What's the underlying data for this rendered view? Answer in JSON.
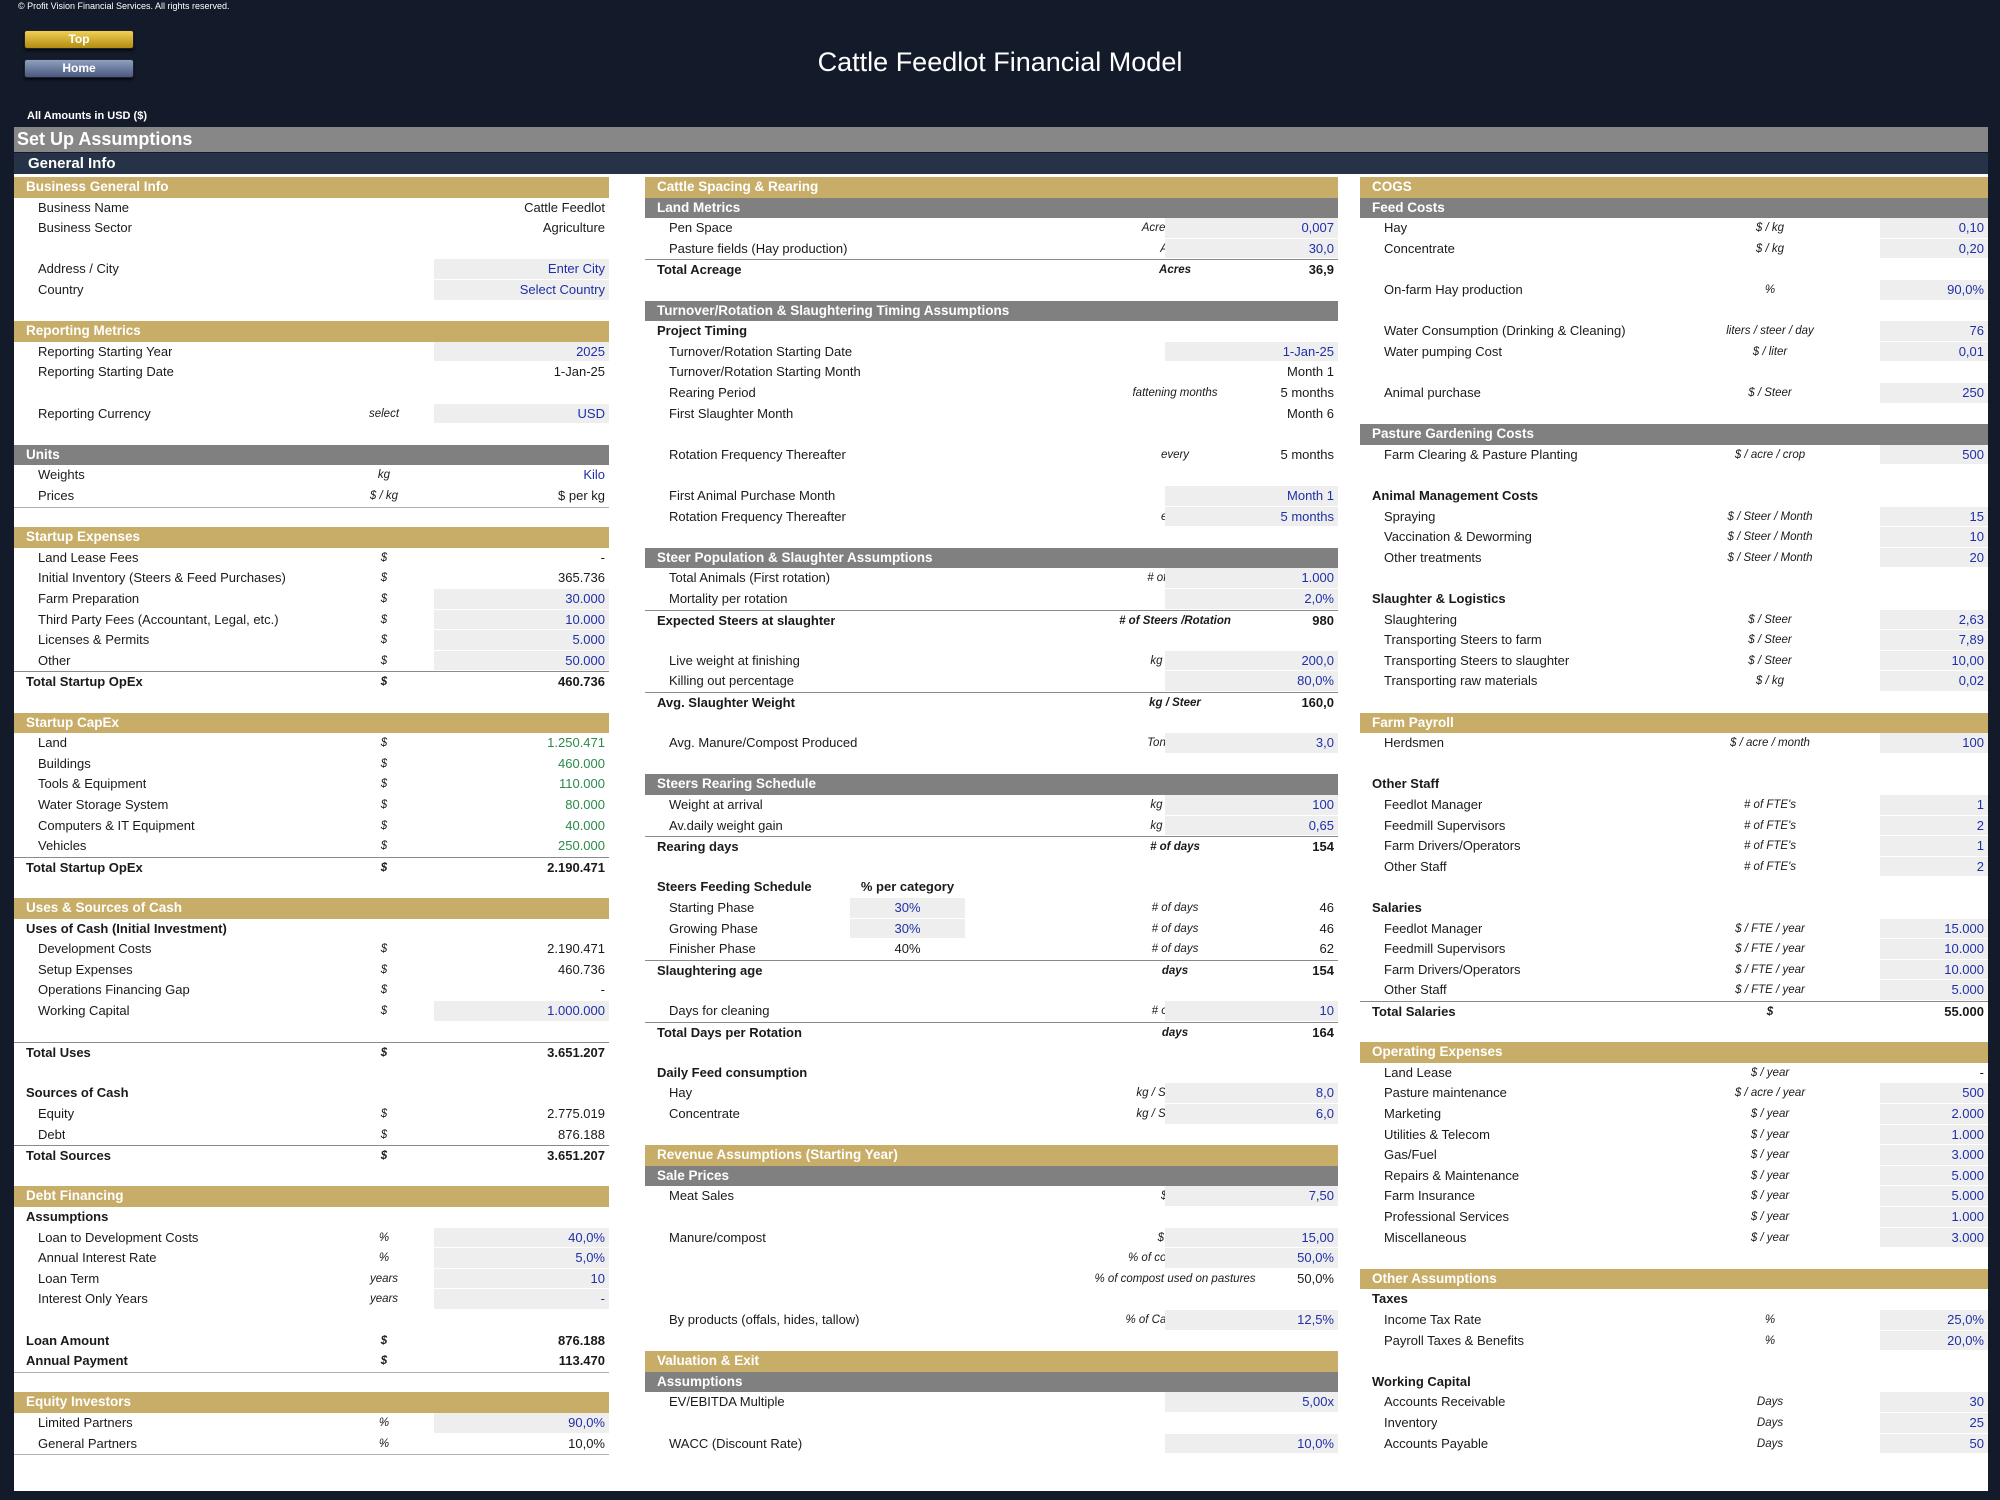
{
  "header": {
    "copyright": "© Profit Vision Financial Services. All rights reserved.",
    "top_label": "Top",
    "home_label": "Home",
    "title": "Cattle Feedlot Financial Model",
    "amounts": "All Amounts in  USD ($)",
    "section_title": "Set Up Assumptions",
    "sub_title": "General Info"
  },
  "colors": {
    "navy": "#131a29",
    "gold": "#c8ad68",
    "gray": "#808080",
    "input_fill": "#eeeeee",
    "input_text": "#1f2fa8",
    "capex_text": "#2b8a4a"
  },
  "columns": [
    [
      {
        "r": 0,
        "t": "hg",
        "l": "Business General Info"
      },
      {
        "r": 1,
        "l": "Business Name",
        "v": "Cattle Feedlot"
      },
      {
        "r": 2,
        "l": "Business Sector",
        "v": "Agriculture"
      },
      {
        "r": 4,
        "l": "Address / City",
        "v": "Enter City",
        "s": "in"
      },
      {
        "r": 5,
        "l": "Country",
        "v": "Select Country",
        "s": "in"
      },
      {
        "r": 7,
        "t": "hg",
        "l": "Reporting Metrics"
      },
      {
        "r": 8,
        "l": "Reporting Starting Year",
        "v": "2025",
        "s": "in"
      },
      {
        "r": 9,
        "l": "Reporting Starting Date",
        "v": "1-Jan-25"
      },
      {
        "r": 11,
        "l": "Reporting Currency",
        "u": "select",
        "v": "USD",
        "s": "in"
      },
      {
        "r": 13,
        "t": "hy",
        "l": "Units"
      },
      {
        "r": 14,
        "l": "Weights",
        "u": "kg",
        "v": "Kilo",
        "s": "b"
      },
      {
        "r": 15,
        "l": "Prices",
        "u": "$ / kg",
        "v": "$  per kg",
        "line": "bot"
      },
      {
        "r": 17,
        "t": "hg",
        "l": "Startup Expenses"
      },
      {
        "r": 18,
        "l": "Land Lease Fees",
        "u": "$",
        "v": "-"
      },
      {
        "r": 19,
        "l": "Initial Inventory (Steers & Feed Purchases)",
        "u": "$",
        "v": "365.736"
      },
      {
        "r": 20,
        "l": "Farm Preparation",
        "u": "$",
        "v": "30.000",
        "s": "in"
      },
      {
        "r": 21,
        "l": "Third Party Fees (Accountant, Legal, etc.)",
        "u": "$",
        "v": "10.000",
        "s": "in"
      },
      {
        "r": 22,
        "l": "Licenses & Permits",
        "u": "$",
        "v": "5.000",
        "s": "in"
      },
      {
        "r": 23,
        "l": "Other",
        "u": "$",
        "v": "50.000",
        "s": "in"
      },
      {
        "r": 24,
        "t": "tot",
        "l": "Total Startup OpEx",
        "u": "$",
        "v": "460.736"
      },
      {
        "r": 26,
        "t": "hg",
        "l": "Startup CapEx"
      },
      {
        "r": 27,
        "l": "Land",
        "u": "$",
        "v": "1.250.471",
        "s": "g"
      },
      {
        "r": 28,
        "l": "Buildings",
        "u": "$",
        "v": "460.000",
        "s": "g"
      },
      {
        "r": 29,
        "l": "Tools & Equipment",
        "u": "$",
        "v": "110.000",
        "s": "g"
      },
      {
        "r": 30,
        "l": "Water Storage System",
        "u": "$",
        "v": "80.000",
        "s": "g"
      },
      {
        "r": 31,
        "l": "Computers & IT Equipment",
        "u": "$",
        "v": "40.000",
        "s": "g"
      },
      {
        "r": 32,
        "l": "Vehicles",
        "u": "$",
        "v": "250.000",
        "s": "g"
      },
      {
        "r": 33,
        "t": "tot",
        "l": "Total Startup OpEx",
        "u": "$",
        "v": "2.190.471"
      },
      {
        "r": 35,
        "t": "hg",
        "l": "Uses & Sources of Cash"
      },
      {
        "r": 36,
        "t": "sub",
        "l": "Uses of Cash (Initial Investment)"
      },
      {
        "r": 37,
        "l": "Development Costs",
        "u": "$",
        "v": "2.190.471"
      },
      {
        "r": 38,
        "l": "Setup Expenses",
        "u": "$",
        "v": "460.736"
      },
      {
        "r": 39,
        "l": "Operations Financing Gap",
        "u": "$",
        "v": "-"
      },
      {
        "r": 40,
        "l": "Working Capital",
        "u": "$",
        "v": "1.000.000",
        "s": "in"
      },
      {
        "r": 42,
        "t": "tot",
        "l": "Total Uses",
        "u": "$",
        "v": "3.651.207"
      },
      {
        "r": 44,
        "t": "sub",
        "l": "Sources of Cash"
      },
      {
        "r": 45,
        "l": "Equity",
        "u": "$",
        "v": "2.775.019"
      },
      {
        "r": 46,
        "l": "Debt",
        "u": "$",
        "v": "876.188"
      },
      {
        "r": 47,
        "t": "tot",
        "l": "Total Sources",
        "u": "$",
        "v": "3.651.207"
      },
      {
        "r": 49,
        "t": "hg",
        "l": "Debt Financing"
      },
      {
        "r": 50,
        "t": "sub",
        "l": "Assumptions"
      },
      {
        "r": 51,
        "l": "Loan to Development Costs",
        "u": "%",
        "v": "40,0%",
        "s": "in"
      },
      {
        "r": 52,
        "l": "Annual Interest Rate",
        "u": "%",
        "v": "5,0%",
        "s": "in"
      },
      {
        "r": 53,
        "l": "Loan Term",
        "u": "years",
        "v": "10",
        "s": "in"
      },
      {
        "r": 54,
        "l": "Interest Only Years",
        "u": "years",
        "v": "-",
        "s": "in"
      },
      {
        "r": 56,
        "t": "sub",
        "l": "Loan Amount",
        "u": "$",
        "v": "876.188"
      },
      {
        "r": 57,
        "t": "sub",
        "l": "Annual Payment",
        "u": "$",
        "v": "113.470",
        "line": "bot"
      },
      {
        "r": 59,
        "t": "hg",
        "l": "Equity Investors"
      },
      {
        "r": 60,
        "l": "Limited Partners",
        "u": "%",
        "v": "90,0%",
        "s": "in"
      },
      {
        "r": 61,
        "l": "General Partners",
        "u": "%",
        "v": "10,0%",
        "line": "bot"
      }
    ],
    [
      {
        "r": 0,
        "t": "hg",
        "l": "Cattle Spacing & Rearing"
      },
      {
        "r": 1,
        "t": "hy",
        "l": "Land Metrics"
      },
      {
        "r": 2,
        "l": "Pen Space",
        "u": "Acres / Steer",
        "v": "0,007",
        "s": "in"
      },
      {
        "r": 3,
        "l": "Pasture fields (Hay production)",
        "u": "Acres",
        "v": "30,0",
        "s": "in"
      },
      {
        "r": 4,
        "t": "tot",
        "l": "Total Acreage",
        "u": "Acres",
        "v": "36,9"
      },
      {
        "r": 6,
        "t": "hy",
        "l": "Turnover/Rotation & Slaughtering Timing Assumptions"
      },
      {
        "r": 7,
        "t": "sub",
        "l": "Project Timing"
      },
      {
        "r": 8,
        "l": "Turnover/Rotation Starting Date",
        "v": "1-Jan-25",
        "s": "in"
      },
      {
        "r": 9,
        "l": "Turnover/Rotation Starting Month",
        "v": "Month 1"
      },
      {
        "r": 10,
        "l": "Rearing Period",
        "u": "fattening months",
        "v": "5 months"
      },
      {
        "r": 11,
        "l": "First Slaughter Month",
        "v": "Month 6"
      },
      {
        "r": 13,
        "l": "Rotation Frequency Thereafter",
        "u": "every",
        "v": "5 months"
      },
      {
        "r": 15,
        "l": "First Animal Purchase Month",
        "v": "Month 1",
        "s": "in"
      },
      {
        "r": 16,
        "l": "Rotation Frequency Thereafter",
        "u": "every",
        "v": "5 months",
        "s": "in"
      },
      {
        "r": 18,
        "t": "hy",
        "l": "Steer Population & Slaughter Assumptions"
      },
      {
        "r": 19,
        "l": "Total Animals (First rotation)",
        "u": "# of Steers",
        "v": "1.000",
        "s": "in"
      },
      {
        "r": 20,
        "l": "Mortality per rotation",
        "u": "%",
        "v": "2,0%",
        "s": "in"
      },
      {
        "r": 21,
        "t": "tot",
        "l": "Expected Steers at slaughter",
        "u": "# of Steers /Rotation",
        "v": "980"
      },
      {
        "r": 23,
        "l": "Live weight at finishing",
        "u": "kg / Steer",
        "v": "200,0",
        "s": "in"
      },
      {
        "r": 24,
        "l": "Killing out percentage",
        "u": "%",
        "v": "80,0%",
        "s": "in"
      },
      {
        "r": 25,
        "t": "tot",
        "l": "Avg. Slaughter Weight",
        "u": "kg / Steer",
        "v": "160,0"
      },
      {
        "r": 27,
        "l": "Avg. Manure/Compost Produced",
        "u": "Ton / Steer",
        "v": "3,0",
        "s": "in"
      },
      {
        "r": 29,
        "t": "hy",
        "l": "Steers Rearing Schedule"
      },
      {
        "r": 30,
        "l": "Weight at arrival",
        "u": "kg / Steer",
        "v": "100",
        "s": "in"
      },
      {
        "r": 31,
        "l": "Av.daily weight gain",
        "u": "kg / Steer",
        "v": "0,65",
        "s": "in"
      },
      {
        "r": 32,
        "t": "tot",
        "l": "Rearing days",
        "u": "# of days",
        "v": "154"
      },
      {
        "r": 34,
        "t": "sub",
        "l": "Steers Feeding Schedule",
        "m": "% per category"
      },
      {
        "r": 35,
        "l": "Starting Phase",
        "m": "30%",
        "ms": "in",
        "u": "# of days",
        "v": "46"
      },
      {
        "r": 36,
        "l": "Growing Phase",
        "m": "30%",
        "ms": "in",
        "u": "# of days",
        "v": "46"
      },
      {
        "r": 37,
        "l": "Finisher Phase",
        "m": "40%",
        "u": "# of days",
        "v": "62"
      },
      {
        "r": 38,
        "t": "tot",
        "l": "Slaughtering age",
        "u": "days",
        "v": "154"
      },
      {
        "r": 40,
        "l": "Days for cleaning",
        "u": "# of days",
        "v": "10",
        "s": "in"
      },
      {
        "r": 41,
        "t": "tot",
        "l": "Total Days per Rotation",
        "u": "days",
        "v": "164"
      },
      {
        "r": 43,
        "t": "sub",
        "l": "Daily Feed consumption"
      },
      {
        "r": 44,
        "l": "Hay",
        "u": "kg / Steer / day",
        "v": "8,0",
        "s": "in"
      },
      {
        "r": 45,
        "l": "Concentrate",
        "u": "kg / Steer / day",
        "v": "6,0",
        "s": "in"
      },
      {
        "r": 47,
        "t": "hg",
        "l": "Revenue Assumptions (Starting Year)"
      },
      {
        "r": 48,
        "t": "hy",
        "l": "Sale Prices"
      },
      {
        "r": 49,
        "l": "Meat Sales",
        "u": "$ / kg",
        "v": "7,50",
        "s": "in"
      },
      {
        "r": 51,
        "l": "Manure/compost",
        "u": "$ / Ton",
        "v": "15,00",
        "s": "in"
      },
      {
        "r": 52,
        "u": "% of compost sold",
        "v": "50,0%",
        "s": "in"
      },
      {
        "r": 53,
        "u": "% of compost used on pastures",
        "v": "50,0%"
      },
      {
        "r": 55,
        "l": "By products (offals, hides, tallow)",
        "u": "% of  Carcass value",
        "v": "12,5%",
        "s": "in"
      },
      {
        "r": 57,
        "t": "hg",
        "l": "Valuation & Exit"
      },
      {
        "r": 58,
        "t": "hy",
        "l": "Assumptions"
      },
      {
        "r": 59,
        "l": "EV/EBITDA Multiple",
        "u": "x",
        "v": "5,00x",
        "s": "in"
      },
      {
        "r": 61,
        "l": "WACC (Discount Rate)",
        "u": "%",
        "v": "10,0%",
        "s": "in"
      }
    ],
    [
      {
        "r": 0,
        "t": "hg",
        "l": "COGS"
      },
      {
        "r": 1,
        "t": "hy",
        "l": "Feed Costs"
      },
      {
        "r": 2,
        "l": "Hay",
        "u": "$ / kg",
        "v": "0,10",
        "s": "in"
      },
      {
        "r": 3,
        "l": "Concentrate",
        "u": "$ / kg",
        "v": "0,20",
        "s": "in"
      },
      {
        "r": 5,
        "l": "On-farm Hay production",
        "u": "%",
        "v": "90,0%",
        "s": "in"
      },
      {
        "r": 7,
        "l": "Water Consumption (Drinking & Cleaning)",
        "u": "liters / steer / day",
        "v": "76",
        "s": "in"
      },
      {
        "r": 8,
        "l": "Water pumping Cost",
        "u": "$ / liter",
        "v": "0,01",
        "s": "in"
      },
      {
        "r": 10,
        "l": "Animal purchase",
        "u": "$ / Steer",
        "v": "250",
        "s": "in"
      },
      {
        "r": 12,
        "t": "hy",
        "l": "Pasture Gardening Costs"
      },
      {
        "r": 13,
        "l": "Farm Clearing & Pasture Planting",
        "u": "$ / acre / crop",
        "v": "500",
        "s": "in"
      },
      {
        "r": 15,
        "t": "sub",
        "l": "Animal Management Costs"
      },
      {
        "r": 16,
        "l": "Spraying",
        "u": "$ / Steer  / Month",
        "v": "15",
        "s": "in"
      },
      {
        "r": 17,
        "l": "Vaccination & Deworming",
        "u": "$ / Steer  / Month",
        "v": "10",
        "s": "in"
      },
      {
        "r": 18,
        "l": "Other treatments",
        "u": "$ / Steer  / Month",
        "v": "20",
        "s": "in"
      },
      {
        "r": 20,
        "t": "sub",
        "l": "Slaughter & Logistics"
      },
      {
        "r": 21,
        "l": "Slaughtering",
        "u": "$ / Steer",
        "v": "2,63",
        "s": "in"
      },
      {
        "r": 22,
        "l": "Transporting Steers to farm",
        "u": "$ / Steer",
        "v": "7,89",
        "s": "in"
      },
      {
        "r": 23,
        "l": "Transporting Steers to slaughter",
        "u": "$ / Steer",
        "v": "10,00",
        "s": "in"
      },
      {
        "r": 24,
        "l": "Transporting  raw materials",
        "u": "$ / kg",
        "v": "0,02",
        "s": "in"
      },
      {
        "r": 26,
        "t": "hg",
        "l": "Farm Payroll"
      },
      {
        "r": 27,
        "l": "Herdsmen",
        "u": "$ / acre / month",
        "v": "100",
        "s": "in"
      },
      {
        "r": 29,
        "t": "sub",
        "l": "Other Staff"
      },
      {
        "r": 30,
        "l": "Feedlot Manager",
        "u": "# of FTE's",
        "v": "1",
        "s": "in"
      },
      {
        "r": 31,
        "l": "Feedmill Supervisors",
        "u": "# of FTE's",
        "v": "2",
        "s": "in"
      },
      {
        "r": 32,
        "l": "Farm Drivers/Operators",
        "u": "# of FTE's",
        "v": "1",
        "s": "in"
      },
      {
        "r": 33,
        "l": "Other Staff",
        "u": "# of FTE's",
        "v": "2",
        "s": "in"
      },
      {
        "r": 35,
        "t": "sub",
        "l": "Salaries"
      },
      {
        "r": 36,
        "l": "Feedlot Manager",
        "u": "$ / FTE / year",
        "v": "15.000",
        "s": "in"
      },
      {
        "r": 37,
        "l": "Feedmill Supervisors",
        "u": "$ / FTE / year",
        "v": "10.000",
        "s": "in"
      },
      {
        "r": 38,
        "l": "Farm Drivers/Operators",
        "u": "$ / FTE / year",
        "v": "10.000",
        "s": "in"
      },
      {
        "r": 39,
        "l": "Other Staff",
        "u": "$ / FTE / year",
        "v": "5.000",
        "s": "in"
      },
      {
        "r": 40,
        "t": "tot",
        "l": "Total Salaries",
        "u": "$",
        "v": "55.000"
      },
      {
        "r": 42,
        "t": "hg",
        "l": "Operating Expenses"
      },
      {
        "r": 43,
        "l": "Land Lease",
        "u": "$ / year",
        "v": "-"
      },
      {
        "r": 44,
        "l": "Pasture maintenance",
        "u": "$ / acre / year",
        "v": "500",
        "s": "in"
      },
      {
        "r": 45,
        "l": "Marketing",
        "u": "$ / year",
        "v": "2.000",
        "s": "in"
      },
      {
        "r": 46,
        "l": "Utilities & Telecom",
        "u": "$ / year",
        "v": "1.000",
        "s": "in"
      },
      {
        "r": 47,
        "l": "Gas/Fuel",
        "u": "$ / year",
        "v": "3.000",
        "s": "in"
      },
      {
        "r": 48,
        "l": "Repairs & Maintenance",
        "u": "$ / year",
        "v": "5.000",
        "s": "in"
      },
      {
        "r": 49,
        "l": "Farm Insurance",
        "u": "$ / year",
        "v": "5.000",
        "s": "in"
      },
      {
        "r": 50,
        "l": "Professional Services",
        "u": "$ / year",
        "v": "1.000",
        "s": "in"
      },
      {
        "r": 51,
        "l": "Miscellaneous",
        "u": "$ / year",
        "v": "3.000",
        "s": "in"
      },
      {
        "r": 53,
        "t": "hg",
        "l": "Other Assumptions"
      },
      {
        "r": 54,
        "t": "sub",
        "l": "Taxes"
      },
      {
        "r": 55,
        "l": "Income Tax Rate",
        "u": "%",
        "v": "25,0%",
        "s": "in"
      },
      {
        "r": 56,
        "l": "Payroll Taxes & Benefits",
        "u": "%",
        "v": "20,0%",
        "s": "in"
      },
      {
        "r": 58,
        "t": "sub",
        "l": "Working Capital"
      },
      {
        "r": 59,
        "l": "Accounts Receivable",
        "u": "Days",
        "v": "30",
        "s": "in"
      },
      {
        "r": 60,
        "l": "Inventory",
        "u": "Days",
        "v": "25",
        "s": "in"
      },
      {
        "r": 61,
        "l": "Accounts Payable",
        "u": "Days",
        "v": "50",
        "s": "in"
      }
    ]
  ]
}
